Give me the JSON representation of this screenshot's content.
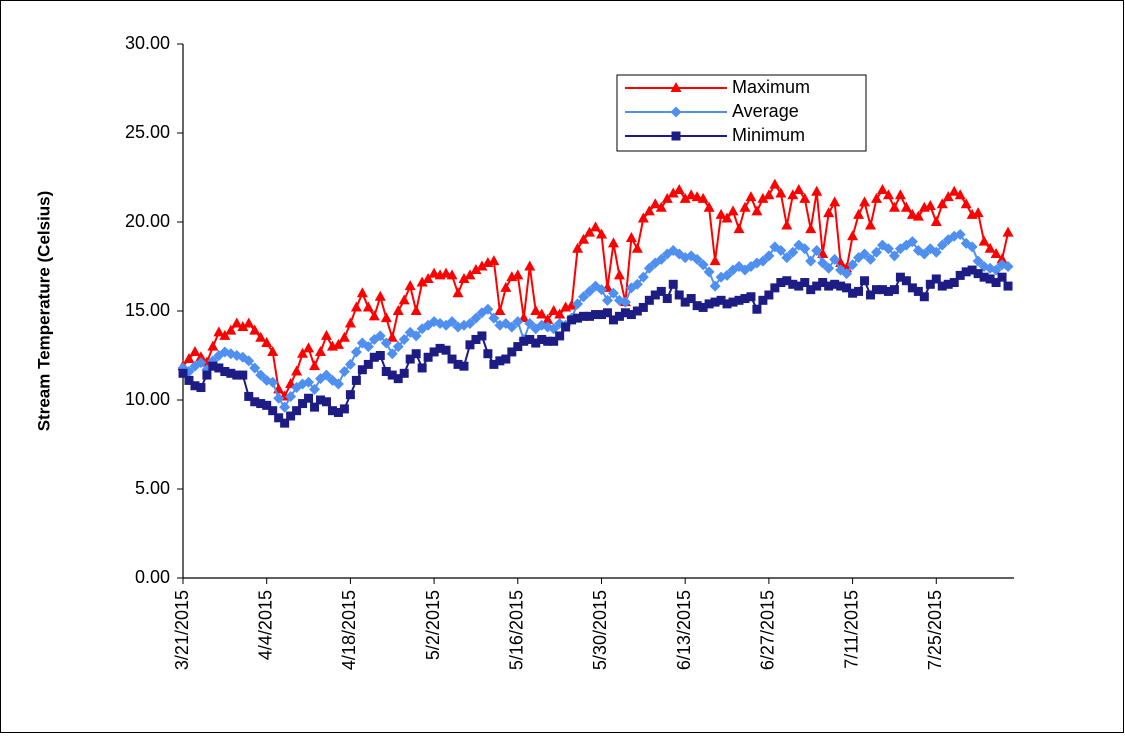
{
  "chart_data": {
    "type": "line",
    "y_label": "Stream Temperature (Celsius)",
    "categories": [
      "3/21/2015",
      null,
      null,
      null,
      null,
      null,
      null,
      null,
      null,
      null,
      null,
      null,
      null,
      null,
      "4/4/2015",
      null,
      null,
      null,
      null,
      null,
      null,
      null,
      null,
      null,
      null,
      null,
      null,
      null,
      "4/18/2015",
      null,
      null,
      null,
      null,
      null,
      null,
      null,
      null,
      null,
      null,
      null,
      null,
      null,
      "5/2/2015",
      null,
      null,
      null,
      null,
      null,
      null,
      null,
      null,
      null,
      null,
      null,
      null,
      null,
      "5/16/2015",
      null,
      null,
      null,
      null,
      null,
      null,
      null,
      null,
      null,
      null,
      null,
      null,
      null,
      "5/30/2015",
      null,
      null,
      null,
      null,
      null,
      null,
      null,
      null,
      null,
      null,
      null,
      null,
      null,
      "6/13/2015",
      null,
      null,
      null,
      null,
      null,
      null,
      null,
      null,
      null,
      null,
      null,
      null,
      null,
      "6/27/2015",
      null,
      null,
      null,
      null,
      null,
      null,
      null,
      null,
      null,
      null,
      null,
      null,
      null,
      "7/11/2015",
      null,
      null,
      null,
      null,
      null,
      null,
      null,
      null,
      null,
      null,
      null,
      null,
      null,
      "7/25/2015",
      null,
      null,
      null,
      null,
      null,
      null,
      null,
      null,
      null,
      null,
      null,
      null
    ],
    "series": [
      {
        "name": "Maximum",
        "color": "#ff0000",
        "marker": "triangle",
        "values": [
          11.9,
          12.3,
          12.7,
          12.4,
          12.1,
          13.0,
          13.8,
          13.6,
          13.9,
          14.3,
          14.1,
          14.3,
          13.9,
          13.5,
          13.2,
          12.7,
          10.6,
          10.2,
          10.9,
          11.6,
          12.6,
          12.9,
          11.9,
          12.7,
          13.6,
          13.0,
          13.1,
          13.5,
          14.3,
          15.2,
          16.0,
          15.2,
          14.7,
          15.8,
          14.6,
          13.5,
          15.0,
          15.6,
          16.4,
          15.0,
          16.6,
          16.8,
          17.1,
          17.0,
          17.1,
          17.0,
          16.0,
          16.8,
          17.0,
          17.3,
          17.5,
          17.7,
          17.8,
          15.0,
          16.3,
          16.9,
          17.0,
          14.6,
          17.5,
          15.0,
          14.8,
          14.5,
          15.0,
          14.8,
          15.2,
          15.3,
          18.5,
          19.0,
          19.4,
          19.7,
          19.3,
          16.3,
          18.8,
          17.0,
          15.5,
          19.1,
          18.5,
          20.2,
          20.6,
          21.0,
          20.8,
          21.3,
          21.6,
          21.8,
          21.3,
          21.5,
          21.4,
          21.3,
          20.8,
          17.8,
          20.4,
          20.2,
          20.6,
          19.6,
          20.8,
          21.4,
          20.6,
          21.3,
          21.5,
          22.1,
          21.6,
          19.8,
          21.5,
          21.8,
          21.3,
          19.6,
          21.7,
          18.2,
          20.5,
          21.1,
          17.7,
          17.4,
          19.2,
          20.4,
          21.1,
          19.8,
          21.3,
          21.8,
          21.5,
          20.8,
          21.5,
          20.8,
          20.4,
          20.3,
          20.8,
          20.9,
          20.0,
          21.0,
          21.4,
          21.7,
          21.5,
          21.0,
          20.4,
          20.5,
          18.9,
          18.5,
          18.2,
          17.9,
          19.4
        ]
      },
      {
        "name": "Average",
        "color": "#4f8ff0",
        "marker": "diamond",
        "values": [
          11.8,
          11.6,
          11.9,
          12.1,
          11.7,
          12.2,
          12.5,
          12.7,
          12.6,
          12.5,
          12.4,
          12.2,
          11.8,
          11.4,
          11.1,
          11.0,
          10.1,
          9.6,
          10.2,
          10.7,
          10.9,
          11.0,
          10.6,
          11.2,
          11.4,
          11.1,
          10.9,
          11.6,
          12.0,
          12.7,
          13.2,
          13.0,
          13.4,
          13.6,
          13.2,
          12.6,
          13.0,
          13.4,
          13.8,
          13.6,
          14.0,
          14.2,
          14.4,
          14.3,
          14.2,
          14.4,
          14.1,
          14.2,
          14.3,
          14.6,
          14.9,
          15.1,
          14.6,
          14.2,
          14.3,
          14.1,
          14.4,
          13.4,
          14.3,
          14.0,
          14.2,
          14.1,
          14.0,
          14.3,
          14.2,
          14.6,
          15.4,
          15.8,
          16.1,
          16.4,
          16.2,
          15.6,
          16.0,
          15.6,
          15.5,
          16.3,
          16.5,
          16.9,
          17.4,
          17.7,
          17.9,
          18.2,
          18.4,
          18.2,
          18.0,
          18.1,
          17.9,
          17.6,
          17.2,
          16.4,
          16.9,
          17.0,
          17.3,
          17.5,
          17.3,
          17.5,
          17.7,
          17.8,
          18.1,
          18.6,
          18.4,
          18.0,
          18.3,
          18.7,
          18.5,
          17.8,
          18.4,
          17.7,
          17.4,
          17.9,
          17.3,
          17.1,
          17.6,
          18.0,
          18.2,
          17.9,
          18.3,
          18.7,
          18.5,
          18.1,
          18.5,
          18.7,
          18.9,
          18.4,
          18.2,
          18.5,
          18.3,
          18.7,
          19.0,
          19.2,
          19.3,
          18.8,
          18.6,
          17.8,
          17.5,
          17.4,
          17.3,
          17.6,
          17.5
        ]
      },
      {
        "name": "Minimum",
        "color": "#1c1c84",
        "marker": "square",
        "values": [
          11.5,
          11.1,
          10.8,
          10.7,
          11.4,
          11.9,
          11.8,
          11.6,
          11.5,
          11.4,
          11.4,
          10.2,
          9.9,
          9.8,
          9.7,
          9.4,
          9.0,
          8.7,
          9.1,
          9.4,
          9.8,
          10.1,
          9.6,
          10.0,
          9.9,
          9.4,
          9.3,
          9.5,
          10.3,
          11.1,
          11.7,
          12.0,
          12.4,
          12.5,
          11.6,
          11.4,
          11.2,
          11.5,
          12.3,
          12.6,
          11.8,
          12.4,
          12.7,
          12.9,
          12.8,
          12.3,
          12.0,
          11.9,
          13.1,
          13.4,
          13.6,
          12.6,
          12.0,
          12.2,
          12.3,
          12.7,
          13.0,
          13.3,
          13.4,
          13.2,
          13.4,
          13.3,
          13.3,
          13.6,
          14.1,
          14.5,
          14.6,
          14.7,
          14.7,
          14.8,
          14.8,
          14.9,
          14.5,
          14.7,
          14.9,
          14.8,
          15.0,
          15.2,
          15.6,
          15.9,
          16.1,
          15.7,
          16.5,
          15.9,
          15.5,
          15.7,
          15.3,
          15.2,
          15.4,
          15.5,
          15.6,
          15.4,
          15.5,
          15.6,
          15.7,
          15.8,
          15.1,
          15.6,
          15.9,
          16.3,
          16.6,
          16.7,
          16.5,
          16.4,
          16.6,
          16.2,
          16.4,
          16.6,
          16.4,
          16.5,
          16.4,
          16.3,
          16.0,
          16.1,
          16.7,
          15.9,
          16.2,
          16.2,
          16.1,
          16.2,
          16.9,
          16.7,
          16.3,
          16.1,
          15.8,
          16.5,
          16.8,
          16.4,
          16.5,
          16.6,
          17.0,
          17.2,
          17.3,
          17.1,
          16.9,
          16.8,
          16.6,
          16.9,
          16.4
        ]
      }
    ],
    "ylim": [
      0,
      30
    ],
    "yticks": [
      {
        "value": 0,
        "label": "0.00"
      },
      {
        "value": 5,
        "label": "5.00"
      },
      {
        "value": 10,
        "label": "10.00"
      },
      {
        "value": 15,
        "label": "15.00"
      },
      {
        "value": 20,
        "label": "20.00"
      },
      {
        "value": 25,
        "label": "25.00"
      },
      {
        "value": 30,
        "label": "30.00"
      }
    ],
    "grid": false,
    "legend": "upper right"
  }
}
